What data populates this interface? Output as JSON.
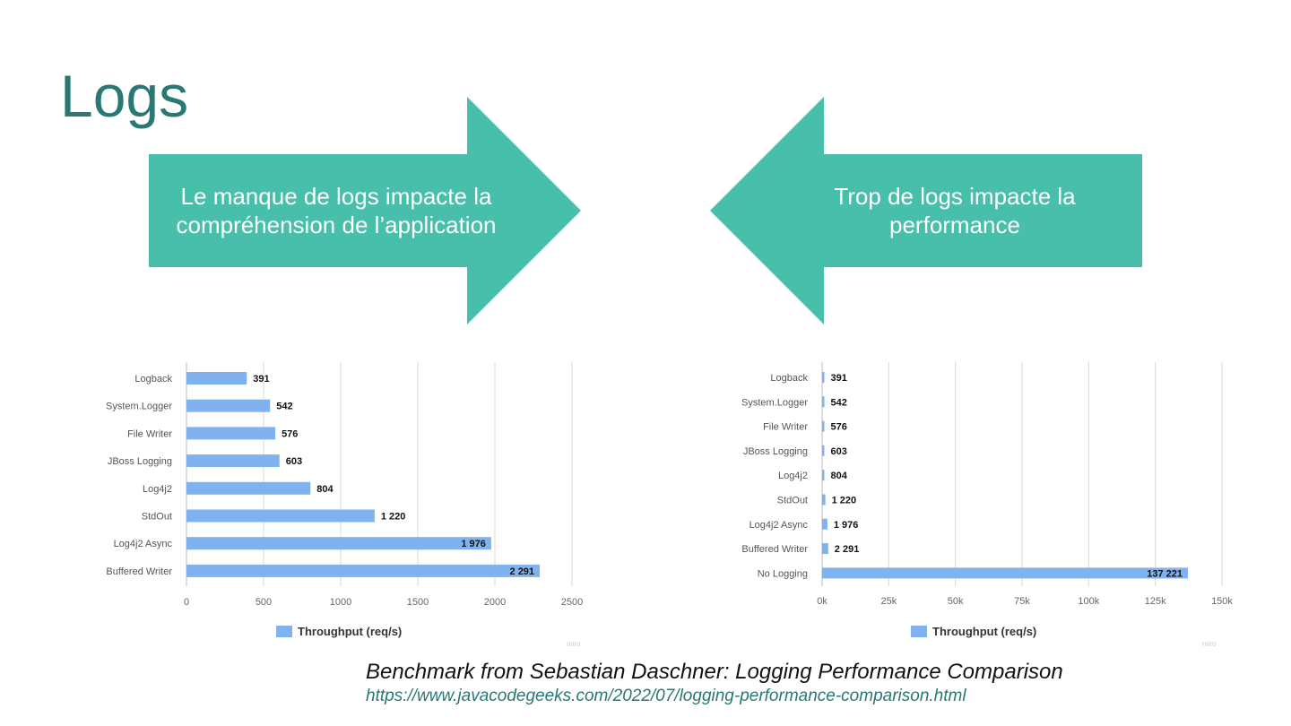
{
  "slide": {
    "title": "Logs"
  },
  "arrows": {
    "left": {
      "text_line1": "Le manque de logs impacte la",
      "text_line2": "compréhension de l’application"
    },
    "right": {
      "text_line1": "Trop de logs impacte la",
      "text_line2": "performance"
    },
    "color": "#48bfaa"
  },
  "chart_data": [
    {
      "type": "bar",
      "orientation": "horizontal",
      "categories": [
        "Logback",
        "System.Logger",
        "File Writer",
        "JBoss Logging",
        "Log4j2",
        "StdOut",
        "Log4j2 Async",
        "Buffered Writer"
      ],
      "values": [
        391,
        542,
        576,
        603,
        804,
        1220,
        1976,
        2291
      ],
      "value_labels": [
        "391",
        "542",
        "576",
        "603",
        "804",
        "1 220",
        "1 976",
        "2 291"
      ],
      "xlim": [
        0,
        2500
      ],
      "ticks": [
        0,
        500,
        1000,
        1500,
        2000,
        2500
      ],
      "tick_labels": [
        "0",
        "500",
        "1000",
        "1500",
        "2000",
        "2500"
      ],
      "legend": "Throughput (req/s)",
      "watermark": "miro",
      "bar_color": "#7fb2ee"
    },
    {
      "type": "bar",
      "orientation": "horizontal",
      "categories": [
        "Logback",
        "System.Logger",
        "File Writer",
        "JBoss Logging",
        "Log4j2",
        "StdOut",
        "Log4j2 Async",
        "Buffered Writer",
        "No Logging"
      ],
      "values": [
        391,
        542,
        576,
        603,
        804,
        1220,
        1976,
        2291,
        137221
      ],
      "value_labels": [
        "391",
        "542",
        "576",
        "603",
        "804",
        "1 220",
        "1 976",
        "2 291",
        "137 221"
      ],
      "xlim": [
        0,
        150000
      ],
      "ticks": [
        0,
        25000,
        50000,
        75000,
        100000,
        125000,
        150000
      ],
      "tick_labels": [
        "0k",
        "25k",
        "50k",
        "75k",
        "100k",
        "125k",
        "150k"
      ],
      "legend": "Throughput (req/s)",
      "watermark": "miro",
      "bar_color": "#7fb2ee"
    }
  ],
  "caption": {
    "text": "Benchmark from Sebastian Daschner: Logging Performance Comparison",
    "link": "https://www.javacodegeeks.com/2022/07/logging-performance-comparison.html"
  }
}
